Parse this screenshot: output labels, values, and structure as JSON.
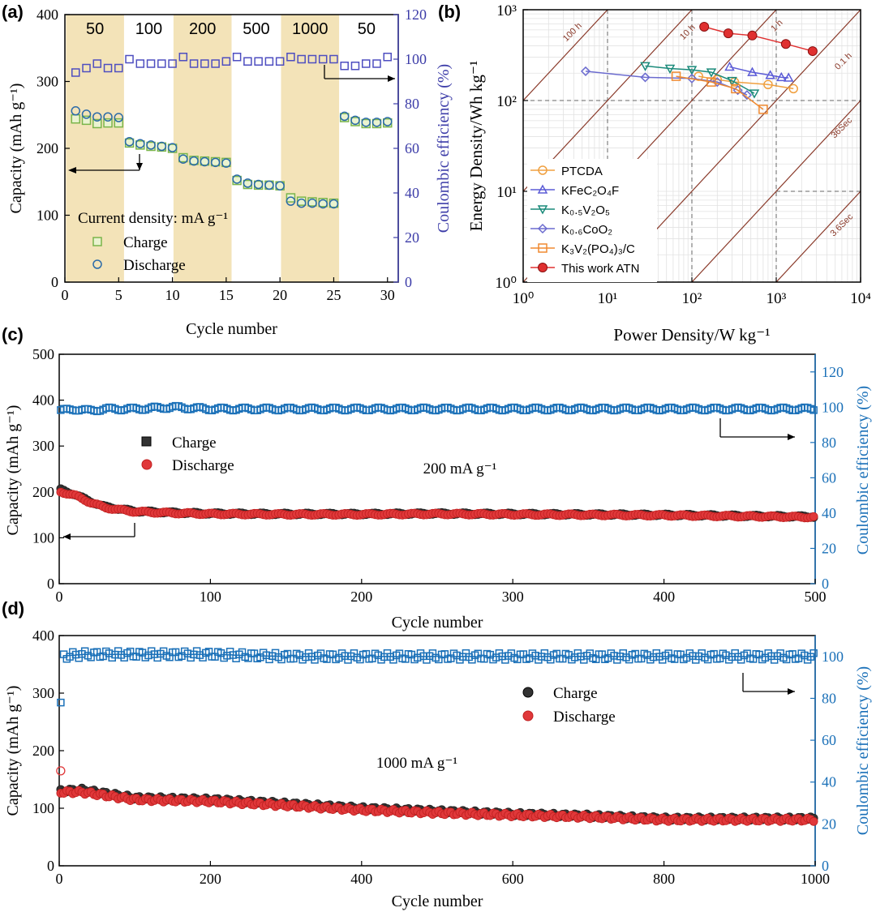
{
  "chart_data": [
    {
      "panel": "(a)",
      "type": "scatter",
      "xlabel": "Cycle number",
      "ylabel": "Capacity (mAh g⁻¹)",
      "y2label": "Coulombic efficiency (%)",
      "xlim": [
        0,
        31
      ],
      "ylim": [
        0,
        400
      ],
      "y2lim": [
        0,
        120
      ],
      "xticks": [
        "0",
        "5",
        "10",
        "15",
        "20",
        "25",
        "30"
      ],
      "yticks": [
        "0",
        "100",
        "200",
        "300",
        "400"
      ],
      "y2ticks": [
        "0",
        "20",
        "40",
        "60",
        "80",
        "100",
        "120"
      ],
      "legend_title": "Current density: mA g⁻¹",
      "legend": [
        "Charge",
        "Discharge"
      ],
      "rate_segments": [
        {
          "label": "50",
          "from": 0,
          "to": 5,
          "shaded": true
        },
        {
          "label": "100",
          "from": 5,
          "to": 10,
          "shaded": false
        },
        {
          "label": "200",
          "from": 10,
          "to": 15,
          "shaded": true
        },
        {
          "label": "500",
          "from": 15,
          "to": 20,
          "shaded": false
        },
        {
          "label": "1000",
          "from": 20,
          "to": 25,
          "shaded": true
        },
        {
          "label": "50",
          "from": 25,
          "to": 31,
          "shaded": false
        }
      ],
      "cycles": [
        1,
        2,
        3,
        4,
        5,
        6,
        7,
        8,
        9,
        10,
        11,
        12,
        13,
        14,
        15,
        16,
        17,
        18,
        19,
        20,
        21,
        22,
        23,
        24,
        25,
        26,
        27,
        28,
        29,
        30
      ],
      "series": [
        {
          "name": "Charge",
          "values": [
            244,
            242,
            237,
            238,
            238,
            208,
            205,
            203,
            202,
            200,
            186,
            182,
            181,
            180,
            179,
            152,
            146,
            145,
            145,
            144,
            126,
            121,
            120,
            119,
            118,
            246,
            240,
            237,
            237,
            238
          ]
        },
        {
          "name": "Discharge",
          "values": [
            256,
            251,
            247,
            247,
            246,
            210,
            207,
            205,
            203,
            201,
            184,
            181,
            180,
            179,
            178,
            154,
            148,
            146,
            145,
            144,
            121,
            118,
            118,
            117,
            117,
            248,
            242,
            239,
            239,
            240
          ]
        },
        {
          "name": "Coulombic efficiency",
          "values": [
            94,
            96,
            98,
            96,
            96,
            100,
            98,
            98,
            98,
            98,
            101,
            98,
            98,
            98,
            99,
            101,
            99,
            99,
            99,
            99,
            101,
            100,
            100,
            100,
            100,
            97,
            97,
            98,
            98,
            101
          ]
        }
      ]
    },
    {
      "panel": "(b)",
      "type": "line",
      "xlabel": "Power Density/W kg⁻¹",
      "ylabel": "Energy Density/Wh kg⁻¹",
      "xscale": "log",
      "yscale": "log",
      "xlim": [
        1,
        10000
      ],
      "ylim": [
        1,
        1000
      ],
      "xticks": [
        "10⁰",
        "10¹",
        "10²",
        "10³",
        "10⁴"
      ],
      "yticks": [
        "10⁰",
        "10¹",
        "10²",
        "10³"
      ],
      "time_lines": [
        "100 h",
        "10 h",
        "1 h",
        "0.1 h",
        "36Sec",
        "3.6Sec"
      ],
      "series": [
        {
          "name": "PTCDA",
          "color": "#f0a040",
          "marker": "circle",
          "x": [
            120,
            200,
            320,
            800,
            1600
          ],
          "y": [
            185,
            170,
            160,
            150,
            135
          ]
        },
        {
          "name": "KFeC₂O₄F",
          "color": "#5b5bd6",
          "marker": "triangle-up",
          "x": [
            280,
            520,
            850,
            1150,
            1400
          ],
          "y": [
            235,
            205,
            190,
            180,
            178
          ]
        },
        {
          "name": "K₀.₅V₂O₅",
          "color": "#1a8a7a",
          "marker": "triangle-down",
          "x": [
            28,
            55,
            100,
            170,
            300,
            550
          ],
          "y": [
            240,
            225,
            218,
            205,
            165,
            120
          ]
        },
        {
          "name": "K₀.₆CoO₂",
          "color": "#6b6bcf",
          "marker": "diamond",
          "x": [
            5.5,
            28,
            100,
            200,
            350,
            450
          ],
          "y": [
            210,
            180,
            175,
            160,
            130,
            115
          ]
        },
        {
          "name": "K₃V₂(PO₄)₃/C",
          "color": "#f08a30",
          "marker": "square",
          "x": [
            65,
            170,
            330,
            700
          ],
          "y": [
            185,
            160,
            135,
            80
          ]
        },
        {
          "name": "This work ATN",
          "color": "#e03030",
          "marker": "filled-circle",
          "x": [
            140,
            270,
            520,
            1300,
            2700
          ],
          "y": [
            650,
            550,
            520,
            420,
            350
          ]
        }
      ]
    },
    {
      "panel": "(c)",
      "type": "scatter",
      "xlabel": "Cycle number",
      "ylabel": "Capacity (mAh g⁻¹)",
      "y2label": "Coulombic efficiency (%)",
      "xlim": [
        0,
        500
      ],
      "ylim": [
        0,
        500
      ],
      "y2lim": [
        0,
        130
      ],
      "xticks": [
        "0",
        "100",
        "200",
        "300",
        "400",
        "500"
      ],
      "yticks": [
        "0",
        "100",
        "200",
        "300",
        "400",
        "500"
      ],
      "y2ticks": [
        "0",
        "20",
        "40",
        "60",
        "80",
        "100",
        "120"
      ],
      "annotation": "200 mA g⁻¹",
      "legend": [
        "Charge",
        "Discharge"
      ],
      "series": [
        {
          "name": "Charge",
          "x": [
            1,
            10,
            20,
            30,
            40,
            50,
            75,
            100,
            150,
            200,
            250,
            300,
            350,
            400,
            450,
            500
          ],
          "values": [
            205,
            195,
            180,
            168,
            163,
            158,
            155,
            153,
            152,
            152,
            153,
            152,
            151,
            150,
            148,
            146
          ]
        },
        {
          "name": "Discharge",
          "x": [
            1,
            10,
            20,
            30,
            40,
            50,
            75,
            100,
            150,
            200,
            250,
            300,
            350,
            400,
            450,
            500
          ],
          "values": [
            200,
            193,
            178,
            166,
            161,
            157,
            154,
            152,
            151,
            151,
            152,
            151,
            150,
            149,
            147,
            145
          ]
        },
        {
          "name": "Coulombic efficiency",
          "x": [
            1,
            10,
            20,
            30,
            40,
            50,
            75,
            100,
            150,
            200,
            250,
            300,
            350,
            400,
            450,
            500
          ],
          "values": [
            98,
            99,
            98,
            99,
            99,
            99,
            100,
            99,
            99,
            99,
            99,
            99,
            99,
            99,
            99,
            99
          ]
        }
      ]
    },
    {
      "panel": "(d)",
      "type": "scatter",
      "xlabel": "Cycle number",
      "ylabel": "Capacity (mAh g⁻¹)",
      "y2label": "Coulombic efficiency (%)",
      "xlim": [
        0,
        1000
      ],
      "ylim": [
        0,
        400
      ],
      "y2lim": [
        0,
        110
      ],
      "xticks": [
        "0",
        "200",
        "400",
        "600",
        "800",
        "1000"
      ],
      "yticks": [
        "0",
        "100",
        "200",
        "300",
        "400"
      ],
      "y2ticks": [
        "0",
        "20",
        "40",
        "60",
        "80",
        "100"
      ],
      "annotation": "1000 mA g⁻¹",
      "legend": [
        "Charge",
        "Discharge"
      ],
      "first_cycle": {
        "discharge": 165,
        "coulombic_efficiency": 78
      },
      "series": [
        {
          "name": "Charge",
          "x": [
            2,
            30,
            100,
            200,
            300,
            400,
            500,
            600,
            700,
            800,
            900,
            1000
          ],
          "values": [
            130,
            132,
            118,
            115,
            108,
            100,
            95,
            90,
            87,
            82,
            82,
            82
          ]
        },
        {
          "name": "Discharge",
          "x": [
            2,
            30,
            100,
            200,
            300,
            400,
            500,
            600,
            700,
            800,
            900,
            1000
          ],
          "values": [
            128,
            128,
            115,
            112,
            105,
            97,
            92,
            88,
            85,
            80,
            80,
            80
          ]
        },
        {
          "name": "Coulombic efficiency",
          "x": [
            2,
            30,
            100,
            200,
            300,
            400,
            500,
            600,
            700,
            800,
            900,
            1000
          ],
          "values": [
            100,
            101,
            101,
            101,
            100,
            100,
            100,
            100,
            100,
            100,
            100,
            100
          ]
        }
      ]
    }
  ]
}
